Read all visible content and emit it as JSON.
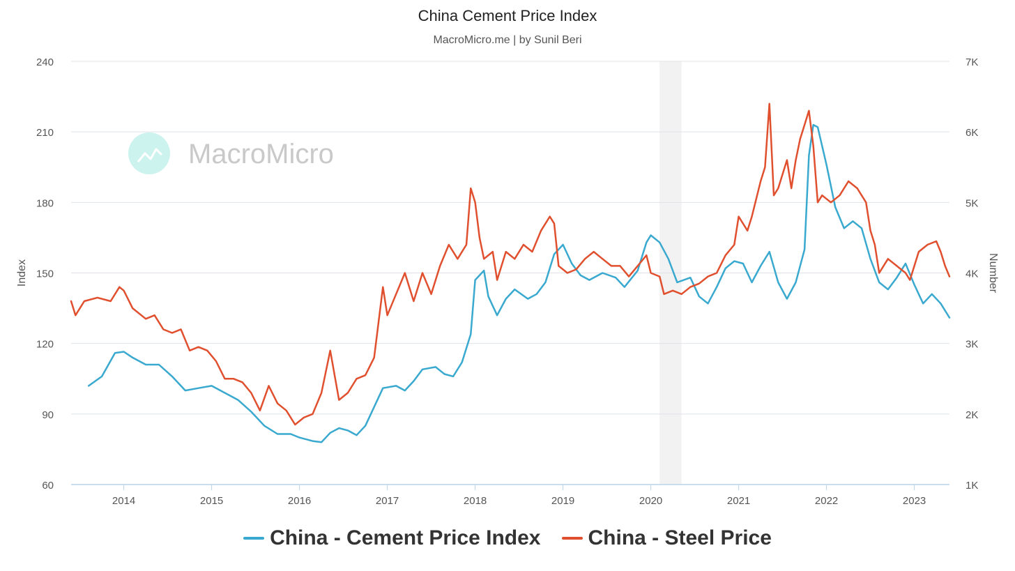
{
  "title": "China Cement Price Index",
  "subtitle": "MacroMicro.me | by Sunil Beri",
  "watermark": "MacroMicro",
  "chart_data": {
    "type": "line",
    "grid": true,
    "legend_position": "bottom",
    "x_ticks": [
      "2014",
      "2015",
      "2016",
      "2017",
      "2018",
      "2019",
      "2020",
      "2021",
      "2022",
      "2023"
    ],
    "xlim": [
      2013.4,
      2023.4
    ],
    "shaded_region": [
      2020.1,
      2020.35
    ],
    "y_left": {
      "label": "Index",
      "ticks": [
        "60",
        "90",
        "120",
        "150",
        "180",
        "210",
        "240"
      ],
      "ylim": [
        60,
        240
      ]
    },
    "y_right": {
      "label": "Number",
      "ticks": [
        "1K",
        "2K",
        "3K",
        "4K",
        "5K",
        "6K",
        "7K"
      ],
      "ylim": [
        1000,
        7000
      ]
    },
    "series": [
      {
        "name": "China - Cement Price Index",
        "color": "#3aa9cf",
        "axis": "left",
        "points": [
          [
            2013.6,
            102
          ],
          [
            2013.75,
            106
          ],
          [
            2013.9,
            116
          ],
          [
            2014.0,
            116.5
          ],
          [
            2014.1,
            114
          ],
          [
            2014.25,
            111
          ],
          [
            2014.4,
            111
          ],
          [
            2014.55,
            106
          ],
          [
            2014.7,
            100
          ],
          [
            2014.85,
            101
          ],
          [
            2015.0,
            102
          ],
          [
            2015.15,
            99
          ],
          [
            2015.3,
            96
          ],
          [
            2015.45,
            91
          ],
          [
            2015.6,
            85
          ],
          [
            2015.75,
            81.5
          ],
          [
            2015.9,
            81.5
          ],
          [
            2016.0,
            80
          ],
          [
            2016.15,
            78.5
          ],
          [
            2016.25,
            78
          ],
          [
            2016.35,
            82
          ],
          [
            2016.45,
            84
          ],
          [
            2016.55,
            83
          ],
          [
            2016.65,
            81
          ],
          [
            2016.75,
            85
          ],
          [
            2016.85,
            93
          ],
          [
            2016.95,
            101
          ],
          [
            2017.1,
            102
          ],
          [
            2017.2,
            100
          ],
          [
            2017.3,
            104
          ],
          [
            2017.4,
            109
          ],
          [
            2017.55,
            110
          ],
          [
            2017.65,
            107
          ],
          [
            2017.75,
            106
          ],
          [
            2017.85,
            112
          ],
          [
            2017.95,
            124
          ],
          [
            2018.0,
            147
          ],
          [
            2018.1,
            151
          ],
          [
            2018.15,
            140
          ],
          [
            2018.25,
            132
          ],
          [
            2018.35,
            139
          ],
          [
            2018.45,
            143
          ],
          [
            2018.6,
            139
          ],
          [
            2018.7,
            141
          ],
          [
            2018.8,
            146
          ],
          [
            2018.9,
            158
          ],
          [
            2019.0,
            162
          ],
          [
            2019.1,
            154
          ],
          [
            2019.2,
            149
          ],
          [
            2019.3,
            147
          ],
          [
            2019.45,
            150
          ],
          [
            2019.6,
            148
          ],
          [
            2019.7,
            144
          ],
          [
            2019.85,
            151
          ],
          [
            2019.95,
            163
          ],
          [
            2020.0,
            166
          ],
          [
            2020.1,
            163
          ],
          [
            2020.2,
            156
          ],
          [
            2020.3,
            146
          ],
          [
            2020.45,
            148
          ],
          [
            2020.55,
            140
          ],
          [
            2020.65,
            137
          ],
          [
            2020.75,
            144
          ],
          [
            2020.85,
            152
          ],
          [
            2020.95,
            155
          ],
          [
            2021.05,
            154
          ],
          [
            2021.15,
            146
          ],
          [
            2021.25,
            153
          ],
          [
            2021.35,
            159
          ],
          [
            2021.45,
            146
          ],
          [
            2021.55,
            139
          ],
          [
            2021.65,
            146
          ],
          [
            2021.75,
            160
          ],
          [
            2021.8,
            200
          ],
          [
            2021.85,
            213
          ],
          [
            2021.9,
            212
          ],
          [
            2022.0,
            196
          ],
          [
            2022.1,
            178
          ],
          [
            2022.2,
            169
          ],
          [
            2022.3,
            172
          ],
          [
            2022.4,
            169
          ],
          [
            2022.5,
            156
          ],
          [
            2022.6,
            146
          ],
          [
            2022.7,
            143
          ],
          [
            2022.8,
            148
          ],
          [
            2022.9,
            154
          ],
          [
            2023.0,
            145
          ],
          [
            2023.1,
            137
          ],
          [
            2023.2,
            141
          ],
          [
            2023.3,
            137
          ],
          [
            2023.4,
            131
          ]
        ]
      },
      {
        "name": "China - Steel Price",
        "color": "#e0502f",
        "axis": "right",
        "points": [
          [
            2013.4,
            3600
          ],
          [
            2013.45,
            3400
          ],
          [
            2013.55,
            3600
          ],
          [
            2013.7,
            3650
          ],
          [
            2013.85,
            3600
          ],
          [
            2013.95,
            3800
          ],
          [
            2014.0,
            3750
          ],
          [
            2014.1,
            3500
          ],
          [
            2014.25,
            3350
          ],
          [
            2014.35,
            3400
          ],
          [
            2014.45,
            3200
          ],
          [
            2014.55,
            3150
          ],
          [
            2014.65,
            3200
          ],
          [
            2014.75,
            2900
          ],
          [
            2014.85,
            2950
          ],
          [
            2014.95,
            2900
          ],
          [
            2015.05,
            2750
          ],
          [
            2015.15,
            2500
          ],
          [
            2015.25,
            2500
          ],
          [
            2015.35,
            2450
          ],
          [
            2015.45,
            2300
          ],
          [
            2015.55,
            2050
          ],
          [
            2015.65,
            2400
          ],
          [
            2015.75,
            2150
          ],
          [
            2015.85,
            2050
          ],
          [
            2015.95,
            1850
          ],
          [
            2016.05,
            1950
          ],
          [
            2016.15,
            2000
          ],
          [
            2016.25,
            2300
          ],
          [
            2016.35,
            2900
          ],
          [
            2016.45,
            2200
          ],
          [
            2016.55,
            2300
          ],
          [
            2016.65,
            2500
          ],
          [
            2016.75,
            2550
          ],
          [
            2016.85,
            2800
          ],
          [
            2016.95,
            3800
          ],
          [
            2017.0,
            3400
          ],
          [
            2017.1,
            3700
          ],
          [
            2017.2,
            4000
          ],
          [
            2017.3,
            3600
          ],
          [
            2017.4,
            4000
          ],
          [
            2017.5,
            3700
          ],
          [
            2017.6,
            4100
          ],
          [
            2017.7,
            4400
          ],
          [
            2017.8,
            4200
          ],
          [
            2017.9,
            4400
          ],
          [
            2017.95,
            5200
          ],
          [
            2018.0,
            5000
          ],
          [
            2018.05,
            4500
          ],
          [
            2018.1,
            4200
          ],
          [
            2018.2,
            4300
          ],
          [
            2018.25,
            3900
          ],
          [
            2018.35,
            4300
          ],
          [
            2018.45,
            4200
          ],
          [
            2018.55,
            4400
          ],
          [
            2018.65,
            4300
          ],
          [
            2018.75,
            4600
          ],
          [
            2018.85,
            4800
          ],
          [
            2018.9,
            4700
          ],
          [
            2018.95,
            4100
          ],
          [
            2019.05,
            4000
          ],
          [
            2019.15,
            4050
          ],
          [
            2019.25,
            4200
          ],
          [
            2019.35,
            4300
          ],
          [
            2019.45,
            4200
          ],
          [
            2019.55,
            4100
          ],
          [
            2019.65,
            4100
          ],
          [
            2019.75,
            3950
          ],
          [
            2019.85,
            4100
          ],
          [
            2019.95,
            4250
          ],
          [
            2020.0,
            4000
          ],
          [
            2020.1,
            3950
          ],
          [
            2020.15,
            3700
          ],
          [
            2020.25,
            3750
          ],
          [
            2020.35,
            3700
          ],
          [
            2020.45,
            3800
          ],
          [
            2020.55,
            3850
          ],
          [
            2020.65,
            3950
          ],
          [
            2020.75,
            4000
          ],
          [
            2020.85,
            4250
          ],
          [
            2020.95,
            4400
          ],
          [
            2021.0,
            4800
          ],
          [
            2021.1,
            4600
          ],
          [
            2021.15,
            4800
          ],
          [
            2021.25,
            5300
          ],
          [
            2021.3,
            5500
          ],
          [
            2021.35,
            6400
          ],
          [
            2021.4,
            5100
          ],
          [
            2021.45,
            5200
          ],
          [
            2021.55,
            5600
          ],
          [
            2021.6,
            5200
          ],
          [
            2021.65,
            5600
          ],
          [
            2021.7,
            5900
          ],
          [
            2021.75,
            6100
          ],
          [
            2021.8,
            6300
          ],
          [
            2021.85,
            5800
          ],
          [
            2021.9,
            5000
          ],
          [
            2021.95,
            5100
          ],
          [
            2022.05,
            5000
          ],
          [
            2022.15,
            5100
          ],
          [
            2022.25,
            5300
          ],
          [
            2022.35,
            5200
          ],
          [
            2022.45,
            5000
          ],
          [
            2022.5,
            4600
          ],
          [
            2022.55,
            4400
          ],
          [
            2022.6,
            4000
          ],
          [
            2022.7,
            4200
          ],
          [
            2022.8,
            4100
          ],
          [
            2022.9,
            4000
          ],
          [
            2022.95,
            3900
          ],
          [
            2023.05,
            4300
          ],
          [
            2023.15,
            4400
          ],
          [
            2023.25,
            4450
          ],
          [
            2023.3,
            4300
          ],
          [
            2023.35,
            4100
          ],
          [
            2023.4,
            3950
          ]
        ]
      }
    ]
  }
}
